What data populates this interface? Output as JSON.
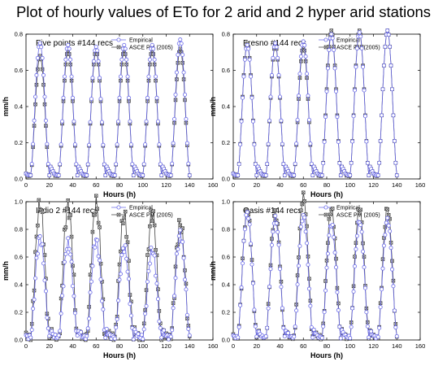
{
  "title": "Plot of hourly values of ETo for 2 arid and 2 hyper arid stations",
  "colors": {
    "empirical": "#6a6ae8",
    "asce": "#404040",
    "axis": "#000000"
  },
  "chart_data": [
    {
      "type": "line",
      "title": "Five points #144 recs",
      "xlabel": "Hours (h)",
      "ylabel": "mm/h",
      "xlim": [
        0,
        160
      ],
      "ylim": [
        0,
        0.8
      ],
      "xticks": [
        0,
        20,
        40,
        60,
        80,
        100,
        120,
        140,
        160
      ],
      "yticks": [
        0.0,
        0.2,
        0.4,
        0.6,
        0.8
      ],
      "legend": "top-right",
      "day_peaks": {
        "Empirical": [
          0.73,
          0.72,
          0.71,
          0.72,
          0.72,
          0.75
        ],
        "ASCE PM (2005)": [
          0.66,
          0.69,
          0.69,
          0.69,
          0.69,
          0.7
        ]
      },
      "series": [
        {
          "name": "Empirical",
          "marker": "circle"
        },
        {
          "name": "ASCE PM (2005)",
          "marker": "square-x"
        }
      ]
    },
    {
      "type": "line",
      "title": "Fresno #144 recs",
      "xlabel": "Hours (h)",
      "ylabel": "mm/h",
      "xlim": [
        0,
        160
      ],
      "ylim": [
        0,
        0.8
      ],
      "xticks": [
        0,
        20,
        40,
        60,
        80,
        100,
        120,
        140,
        160
      ],
      "yticks": [
        0.0,
        0.2,
        0.4,
        0.6,
        0.8
      ],
      "legend": "top-right",
      "day_peaks": {
        "Empirical": [
          0.72,
          0.73,
          0.74,
          0.78,
          0.79,
          0.8
        ],
        "ASCE PM (2005)": [
          0.73,
          0.72,
          0.71,
          0.8,
          0.8,
          0.8
        ]
      },
      "series": [
        {
          "name": "Empirical",
          "marker": "circle"
        },
        {
          "name": "ASCE PM (2005)",
          "marker": "square-x"
        }
      ]
    },
    {
      "type": "line",
      "title": "Indio 2 #144 recs",
      "xlabel": "Hours (h)",
      "ylabel": "mm/h",
      "xlim": [
        0,
        160
      ],
      "ylim": [
        0,
        1.0
      ],
      "xticks": [
        0,
        20,
        40,
        60,
        80,
        100,
        120,
        140,
        160
      ],
      "yticks": [
        0.0,
        0.2,
        0.4,
        0.6,
        0.8,
        1.0
      ],
      "legend": "top-right",
      "day_peaks": {
        "Empirical": [
          0.72,
          0.68,
          0.7,
          0.65,
          0.63,
          0.75
        ],
        "ASCE PM (2005)": [
          0.96,
          0.95,
          0.97,
          0.88,
          0.9,
          0.82
        ]
      },
      "series": [
        {
          "name": "Empirical",
          "marker": "circle"
        },
        {
          "name": "ASCE PM (2005)",
          "marker": "square-x"
        }
      ]
    },
    {
      "type": "line",
      "title": "Oasis #144 recs",
      "xlabel": "Hours (h)",
      "ylabel": "mm/h",
      "xlim": [
        0,
        160
      ],
      "ylim": [
        0,
        1.0
      ],
      "xticks": [
        0,
        20,
        40,
        60,
        80,
        100,
        120,
        140,
        160
      ],
      "yticks": [
        0.0,
        0.2,
        0.4,
        0.6,
        0.8,
        1.0
      ],
      "legend": "top-right",
      "day_peaks": {
        "Empirical": [
          0.9,
          0.86,
          0.88,
          0.82,
          0.84,
          0.85
        ],
        "ASCE PM (2005)": [
          0.92,
          0.9,
          1.02,
          0.93,
          0.93,
          0.93
        ]
      },
      "series": [
        {
          "name": "Empirical",
          "marker": "circle"
        },
        {
          "name": "ASCE PM (2005)",
          "marker": "square-x"
        }
      ]
    }
  ]
}
